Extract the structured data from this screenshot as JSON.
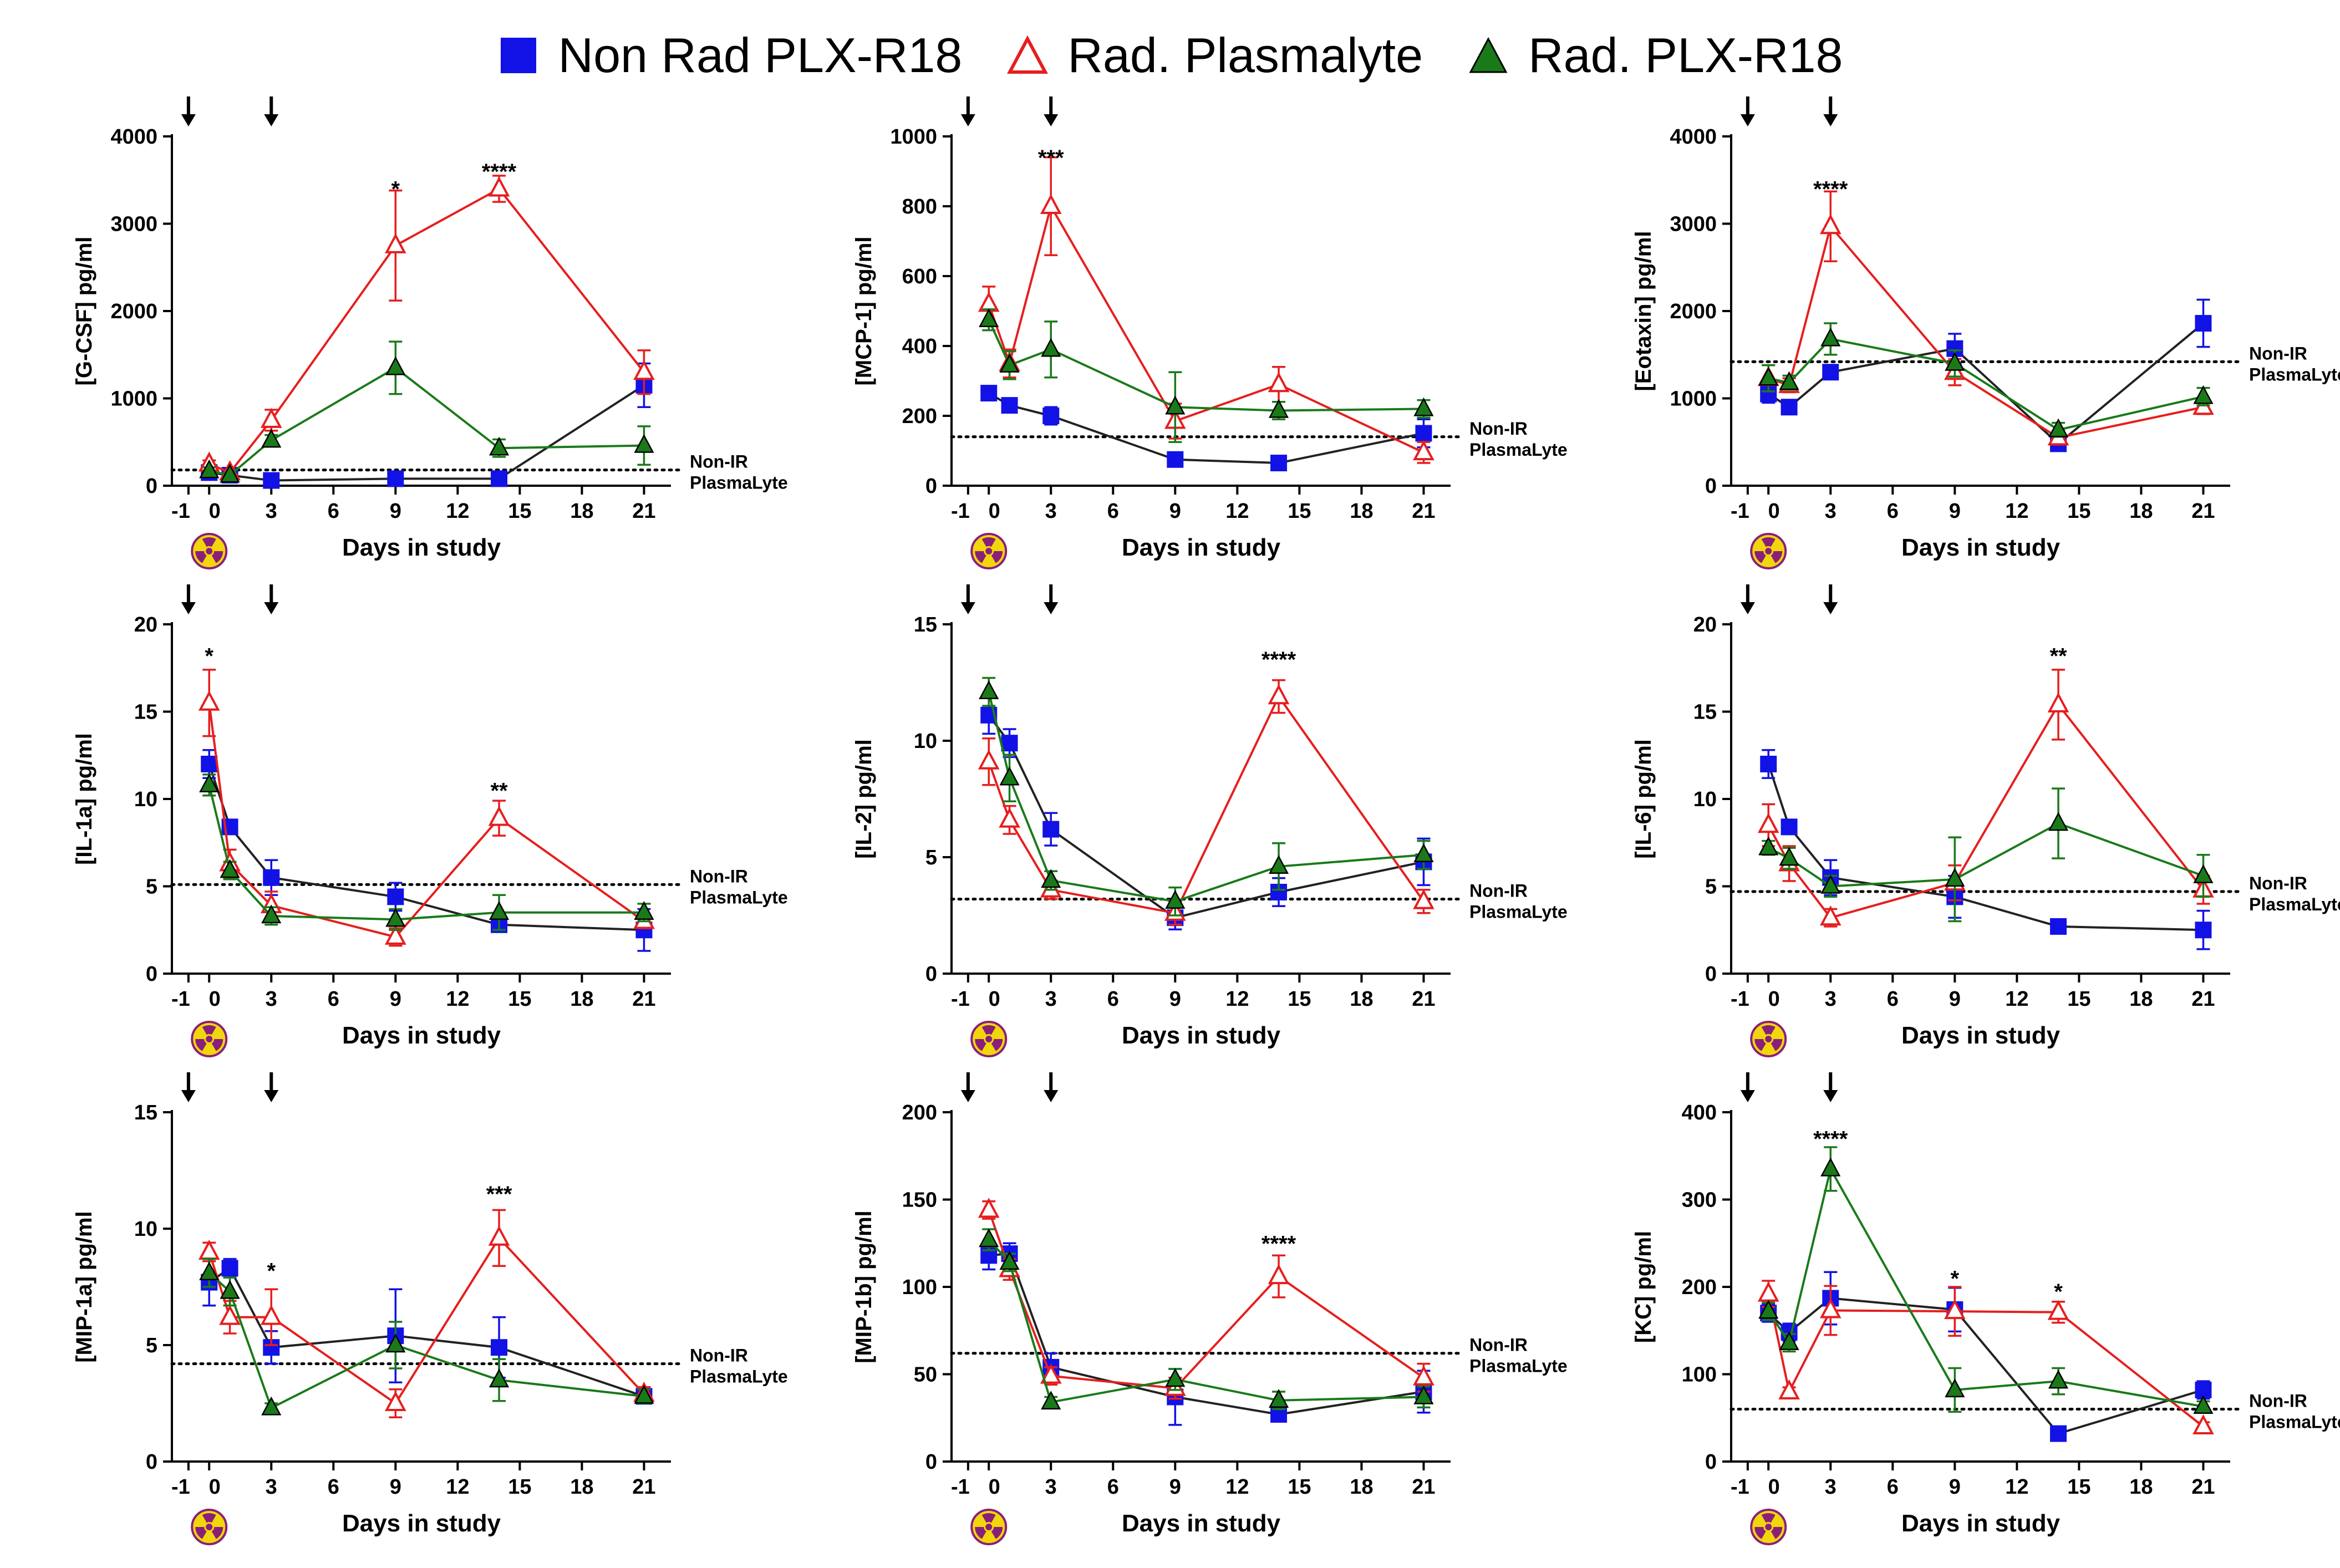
{
  "legend": {
    "non_rad": "Non Rad PLX-R18",
    "rad_plasmalyte": "Rad. Plasmalyte",
    "rad_plx": "Rad. PLX-R18"
  },
  "colors": {
    "non_rad": "#1212e6",
    "rad_plasmalyte": "#e61e1e",
    "rad_plx": "#1a7a1a",
    "axis": "#000000"
  },
  "icons": {
    "arrow": "down-arrow-icon",
    "radiation": "radiation-icon"
  },
  "chart_data": [
    {
      "type": "line",
      "title": "",
      "xlabel": "Days in study",
      "ylabel": "[G-CSF] pg/ml",
      "xlim": [
        -1,
        21
      ],
      "ylim": [
        0,
        4000
      ],
      "x_ticks": [
        "-1",
        "0",
        "3",
        "6",
        "9",
        "12",
        "15",
        "18",
        "21"
      ],
      "y_ticks": [
        "0",
        "1000",
        "2000",
        "3000",
        "4000"
      ],
      "reference": {
        "value": 180,
        "label_line1": "Non-IR",
        "label_line2": "PlasmaLyte"
      },
      "dosing_days": [
        -1,
        3
      ],
      "significance": [
        {
          "x": 9,
          "y": 3400,
          "label": "*"
        },
        {
          "x": 14,
          "y": 3600,
          "label": "****"
        }
      ],
      "series": [
        {
          "name": "Non Rad PLX-R18",
          "x": [
            0,
            1,
            3,
            9,
            14,
            21
          ],
          "values": [
            150,
            120,
            60,
            80,
            80,
            1150
          ],
          "err": [
            30,
            30,
            20,
            20,
            20,
            250
          ]
        },
        {
          "name": "Rad. Plasmalyte",
          "x": [
            0,
            1,
            3,
            9,
            14,
            21
          ],
          "values": [
            250,
            150,
            750,
            2750,
            3400,
            1300
          ],
          "err": [
            40,
            30,
            120,
            630,
            150,
            250
          ]
        },
        {
          "name": "Rad. PLX-R18",
          "x": [
            0,
            1,
            3,
            9,
            14,
            21
          ],
          "values": [
            170,
            120,
            520,
            1350,
            430,
            460
          ],
          "err": [
            40,
            30,
            60,
            300,
            100,
            220
          ]
        }
      ]
    },
    {
      "type": "line",
      "title": "",
      "xlabel": "Days in study",
      "ylabel": "[MCP-1] pg/ml",
      "xlim": [
        -1,
        21
      ],
      "ylim": [
        0,
        1000
      ],
      "x_ticks": [
        "-1",
        "0",
        "3",
        "6",
        "9",
        "12",
        "15",
        "18",
        "21"
      ],
      "y_ticks": [
        "0",
        "200",
        "400",
        "600",
        "800",
        "1000"
      ],
      "reference": {
        "value": 140,
        "label_line1": "Non-IR",
        "label_line2": "PlasmaLyte"
      },
      "dosing_days": [
        -1,
        3
      ],
      "significance": [
        {
          "x": 3,
          "y": 940,
          "label": "***"
        }
      ],
      "series": [
        {
          "name": "Non Rad PLX-R18",
          "x": [
            0,
            1,
            3,
            9,
            14,
            21
          ],
          "values": [
            265,
            230,
            200,
            75,
            65,
            150
          ],
          "err": [
            15,
            15,
            25,
            10,
            10,
            40
          ]
        },
        {
          "name": "Rad. Plasmalyte",
          "x": [
            0,
            1,
            3,
            9,
            14,
            21
          ],
          "values": [
            520,
            350,
            800,
            185,
            290,
            95
          ],
          "err": [
            50,
            40,
            140,
            50,
            50,
            30
          ]
        },
        {
          "name": "Rad. PLX-R18",
          "x": [
            0,
            1,
            3,
            9,
            14,
            21
          ],
          "values": [
            475,
            345,
            390,
            225,
            215,
            220
          ],
          "err": [
            30,
            40,
            80,
            100,
            25,
            25
          ]
        }
      ]
    },
    {
      "type": "line",
      "title": "",
      "xlabel": "Days in study",
      "ylabel": "[Eotaxin] pg/ml",
      "xlim": [
        -1,
        21
      ],
      "ylim": [
        0,
        4000
      ],
      "x_ticks": [
        "-1",
        "0",
        "3",
        "6",
        "9",
        "12",
        "15",
        "18",
        "21"
      ],
      "y_ticks": [
        "0",
        "1000",
        "2000",
        "3000",
        "4000"
      ],
      "reference": {
        "value": 1420,
        "label_line1": "Non-IR",
        "label_line2": "PlasmaLyte"
      },
      "dosing_days": [
        -1,
        3
      ],
      "significance": [
        {
          "x": 3,
          "y": 3400,
          "label": "****"
        }
      ],
      "series": [
        {
          "name": "Non Rad PLX-R18",
          "x": [
            0,
            1,
            3,
            9,
            14,
            21
          ],
          "values": [
            1050,
            900,
            1300,
            1570,
            480,
            1860
          ],
          "err": [
            100,
            60,
            80,
            170,
            60,
            270
          ]
        },
        {
          "name": "Rad. Plasmalyte",
          "x": [
            0,
            1,
            3,
            9,
            14,
            21
          ],
          "values": [
            1230,
            1150,
            2970,
            1300,
            550,
            900
          ],
          "err": [
            150,
            80,
            400,
            150,
            80,
            80
          ]
        },
        {
          "name": "Rad. PLX-R18",
          "x": [
            0,
            1,
            3,
            9,
            14,
            21
          ],
          "values": [
            1230,
            1180,
            1680,
            1400,
            640,
            1020
          ],
          "err": [
            150,
            80,
            180,
            150,
            80,
            100
          ]
        }
      ]
    },
    {
      "type": "line",
      "title": "",
      "xlabel": "Days in study",
      "ylabel": "[IL-1a] pg/ml",
      "xlim": [
        -1,
        21
      ],
      "ylim": [
        0,
        20
      ],
      "x_ticks": [
        "-1",
        "0",
        "3",
        "6",
        "9",
        "12",
        "15",
        "18",
        "21"
      ],
      "y_ticks": [
        "0",
        "5",
        "10",
        "15",
        "20"
      ],
      "reference": {
        "value": 5.1,
        "label_line1": "Non-IR",
        "label_line2": "PlasmaLyte"
      },
      "dosing_days": [
        -1,
        3
      ],
      "significance": [
        {
          "x": 0,
          "y": 18.2,
          "label": "*"
        },
        {
          "x": 14,
          "y": 10.5,
          "label": "**"
        }
      ],
      "series": [
        {
          "name": "Non Rad PLX-R18",
          "x": [
            0,
            1,
            3,
            9,
            14,
            21
          ],
          "values": [
            12,
            8.4,
            5.5,
            4.4,
            2.8,
            2.5
          ],
          "err": [
            0.8,
            0.4,
            1,
            0.8,
            0.4,
            1.2
          ]
        },
        {
          "name": "Rad. Plasmalyte",
          "x": [
            0,
            1,
            3,
            9,
            14,
            21
          ],
          "values": [
            15.5,
            6.3,
            3.9,
            2.1,
            8.9,
            3
          ],
          "err": [
            1.9,
            0.8,
            0.8,
            0.5,
            1,
            0.4
          ]
        },
        {
          "name": "Rad. PLX-R18",
          "x": [
            0,
            1,
            3,
            9,
            14,
            21
          ],
          "values": [
            10.8,
            5.9,
            3.3,
            3.1,
            3.5,
            3.5
          ],
          "err": [
            0.6,
            0.5,
            0.5,
            0.6,
            1,
            0.5
          ]
        }
      ]
    },
    {
      "type": "line",
      "title": "",
      "xlabel": "Days in study",
      "ylabel": "[IL-2] pg/ml",
      "xlim": [
        -1,
        21
      ],
      "ylim": [
        0,
        15
      ],
      "x_ticks": [
        "-1",
        "0",
        "3",
        "6",
        "9",
        "12",
        "15",
        "18",
        "21"
      ],
      "y_ticks": [
        "0",
        "5",
        "10",
        "15"
      ],
      "reference": {
        "value": 3.2,
        "label_line1": "Non-IR",
        "label_line2": "PlasmaLyte"
      },
      "dosing_days": [
        -1,
        3
      ],
      "significance": [
        {
          "x": 14,
          "y": 13.5,
          "label": "****"
        }
      ],
      "series": [
        {
          "name": "Non Rad PLX-R18",
          "x": [
            0,
            1,
            3,
            9,
            14,
            21
          ],
          "values": [
            11.1,
            9.9,
            6.2,
            2.4,
            3.5,
            4.8
          ],
          "err": [
            0.8,
            0.6,
            0.7,
            0.5,
            0.6,
            1
          ]
        },
        {
          "name": "Rad. Plasmalyte",
          "x": [
            0,
            1,
            3,
            9,
            14,
            21
          ],
          "values": [
            9.1,
            6.6,
            3.6,
            2.6,
            11.9,
            3.1
          ],
          "err": [
            1,
            0.6,
            0.4,
            0.5,
            0.7,
            0.5
          ]
        },
        {
          "name": "Rad. PLX-R18",
          "x": [
            0,
            1,
            3,
            9,
            14,
            21
          ],
          "values": [
            12.1,
            8.4,
            4,
            3.1,
            4.6,
            5.1
          ],
          "err": [
            0.6,
            1,
            0.4,
            0.6,
            1,
            0.6
          ]
        }
      ]
    },
    {
      "type": "line",
      "title": "",
      "xlabel": "Days in study",
      "ylabel": "[IL-6] pg/ml",
      "xlim": [
        -1,
        21
      ],
      "ylim": [
        0,
        20
      ],
      "x_ticks": [
        "-1",
        "0",
        "3",
        "6",
        "9",
        "12",
        "15",
        "18",
        "21"
      ],
      "y_ticks": [
        "0",
        "5",
        "10",
        "15",
        "20"
      ],
      "reference": {
        "value": 4.7,
        "label_line1": "Non-IR",
        "label_line2": "PlasmaLyte"
      },
      "dosing_days": [
        -1,
        3
      ],
      "significance": [
        {
          "x": 14,
          "y": 18.2,
          "label": "**"
        }
      ],
      "series": [
        {
          "name": "Non Rad PLX-R18",
          "x": [
            0,
            1,
            3,
            9,
            14,
            21
          ],
          "values": [
            12,
            8.4,
            5.5,
            4.4,
            2.7,
            2.5
          ],
          "err": [
            0.8,
            0.4,
            1,
            1.2,
            0.2,
            1.1
          ]
        },
        {
          "name": "Rad. Plasmalyte",
          "x": [
            0,
            1,
            3,
            9,
            14,
            21
          ],
          "values": [
            8.5,
            6.3,
            3.2,
            5.2,
            15.4,
            4.8
          ],
          "err": [
            1.2,
            1,
            0.5,
            1,
            2,
            0.8
          ]
        },
        {
          "name": "Rad. PLX-R18",
          "x": [
            0,
            1,
            3,
            9,
            14,
            21
          ],
          "values": [
            7.2,
            6.6,
            5,
            5.4,
            8.6,
            5.6
          ],
          "err": [
            0.4,
            0.6,
            0.6,
            2.4,
            2,
            1.2
          ]
        }
      ]
    },
    {
      "type": "line",
      "title": "",
      "xlabel": "Days in study",
      "ylabel": "[MIP-1a] pg/ml",
      "xlim": [
        -1,
        21
      ],
      "ylim": [
        0,
        15
      ],
      "x_ticks": [
        "-1",
        "0",
        "3",
        "6",
        "9",
        "12",
        "15",
        "18",
        "21"
      ],
      "y_ticks": [
        "0",
        "5",
        "10",
        "15"
      ],
      "reference": {
        "value": 4.2,
        "label_line1": "Non-IR",
        "label_line2": "PlasmaLyte"
      },
      "dosing_days": [
        -1,
        3
      ],
      "significance": [
        {
          "x": 3,
          "y": 8.2,
          "label": "*"
        },
        {
          "x": 14,
          "y": 11.5,
          "label": "***"
        }
      ],
      "series": [
        {
          "name": "Non Rad PLX-R18",
          "x": [
            0,
            1,
            3,
            9,
            14,
            21
          ],
          "values": [
            7.7,
            8.3,
            4.9,
            5.4,
            4.9,
            2.8
          ],
          "err": [
            1,
            0.4,
            0.7,
            2,
            1.3,
            0.3
          ]
        },
        {
          "name": "Rad. Plasmalyte",
          "x": [
            0,
            1,
            3,
            9,
            14,
            21
          ],
          "values": [
            9,
            6.2,
            6.2,
            2.5,
            9.6,
            2.9
          ],
          "err": [
            0.4,
            0.7,
            1.2,
            0.6,
            1.2,
            0.3
          ]
        },
        {
          "name": "Rad. PLX-R18",
          "x": [
            0,
            1,
            3,
            9,
            14,
            21
          ],
          "values": [
            8.1,
            7.3,
            2.3,
            5,
            3.5,
            2.8
          ],
          "err": [
            0.6,
            0.6,
            0.2,
            1,
            0.9,
            0.3
          ]
        }
      ]
    },
    {
      "type": "line",
      "title": "",
      "xlabel": "Days in study",
      "ylabel": "[MIP-1b] pg/ml",
      "xlim": [
        -1,
        21
      ],
      "ylim": [
        0,
        200
      ],
      "x_ticks": [
        "-1",
        "0",
        "3",
        "6",
        "9",
        "12",
        "15",
        "18",
        "21"
      ],
      "y_ticks": [
        "0",
        "50",
        "100",
        "150",
        "200"
      ],
      "reference": {
        "value": 62,
        "label_line1": "Non-IR",
        "label_line2": "PlasmaLyte"
      },
      "dosing_days": [
        -1,
        3
      ],
      "significance": [
        {
          "x": 14,
          "y": 125,
          "label": "****"
        }
      ],
      "series": [
        {
          "name": "Non Rad PLX-R18",
          "x": [
            0,
            1,
            3,
            9,
            14,
            21
          ],
          "values": [
            118,
            119,
            54,
            37,
            27,
            40
          ],
          "err": [
            8,
            6,
            8,
            16,
            4,
            12
          ]
        },
        {
          "name": "Rad. Plasmalyte",
          "x": [
            0,
            1,
            3,
            9,
            14,
            21
          ],
          "values": [
            144,
            110,
            49,
            42,
            106,
            48
          ],
          "err": [
            5,
            6,
            5,
            6,
            12,
            8
          ]
        },
        {
          "name": "Rad. PLX-R18",
          "x": [
            0,
            1,
            3,
            9,
            14,
            21
          ],
          "values": [
            127,
            114,
            34,
            47,
            35,
            37
          ],
          "err": [
            6,
            5,
            3,
            6,
            5,
            6
          ]
        }
      ]
    },
    {
      "type": "line",
      "title": "",
      "xlabel": "Days in study",
      "ylabel": "[KC] pg/ml",
      "xlim": [
        -1,
        21
      ],
      "ylim": [
        0,
        400
      ],
      "x_ticks": [
        "-1",
        "0",
        "3",
        "6",
        "9",
        "12",
        "15",
        "18",
        "21"
      ],
      "y_ticks": [
        "0",
        "100",
        "200",
        "300",
        "400"
      ],
      "reference": {
        "value": 60,
        "label_line1": "Non-IR",
        "label_line2": "PlasmaLyte"
      },
      "dosing_days": [
        -1,
        3
      ],
      "significance": [
        {
          "x": 3,
          "y": 370,
          "label": "****"
        },
        {
          "x": 9,
          "y": 210,
          "label": "*"
        },
        {
          "x": 14,
          "y": 195,
          "label": "*"
        }
      ],
      "series": [
        {
          "name": "Non Rad PLX-R18",
          "x": [
            0,
            1,
            3,
            9,
            14,
            21
          ],
          "values": [
            170,
            148,
            187,
            174,
            32,
            82
          ],
          "err": [
            10,
            10,
            30,
            25,
            4,
            10
          ]
        },
        {
          "name": "Rad. Plasmalyte",
          "x": [
            0,
            1,
            3,
            9,
            14,
            21
          ],
          "values": [
            192,
            80,
            173,
            172,
            171,
            40
          ],
          "err": [
            15,
            5,
            28,
            28,
            12,
            5
          ]
        },
        {
          "name": "Rad. PLX-R18",
          "x": [
            0,
            1,
            3,
            9,
            14,
            21
          ],
          "values": [
            172,
            136,
            335,
            82,
            92,
            63
          ],
          "err": [
            10,
            10,
            25,
            25,
            15,
            6
          ]
        }
      ]
    }
  ]
}
